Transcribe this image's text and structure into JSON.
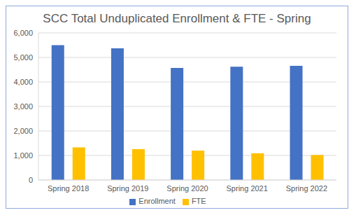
{
  "chart_data": {
    "type": "bar",
    "title": "SCC Total Unduplicated Enrollment & FTE - Spring",
    "categories": [
      "Spring 2018",
      "Spring 2019",
      "Spring 2020",
      "Spring 2021",
      "Spring 2022"
    ],
    "series": [
      {
        "name": "Enrollment",
        "color": "#4472c4",
        "values": [
          5500,
          5370,
          4570,
          4620,
          4660
        ]
      },
      {
        "name": "FTE",
        "color": "#ffc000",
        "values": [
          1330,
          1260,
          1200,
          1090,
          1020
        ]
      }
    ],
    "ylim": [
      0,
      6000
    ],
    "yticks": [
      0,
      {
        "value": 1000,
        "label": "1,000"
      },
      {
        "value": 2000,
        "label": "2,000"
      },
      {
        "value": 3000,
        "label": "3,000"
      },
      {
        "value": 4000,
        "label": "4,000"
      },
      {
        "value": 5000,
        "label": "5,000"
      },
      {
        "value": 6000,
        "label": "6,000"
      }
    ],
    "grid": true,
    "legend": "bottom"
  }
}
